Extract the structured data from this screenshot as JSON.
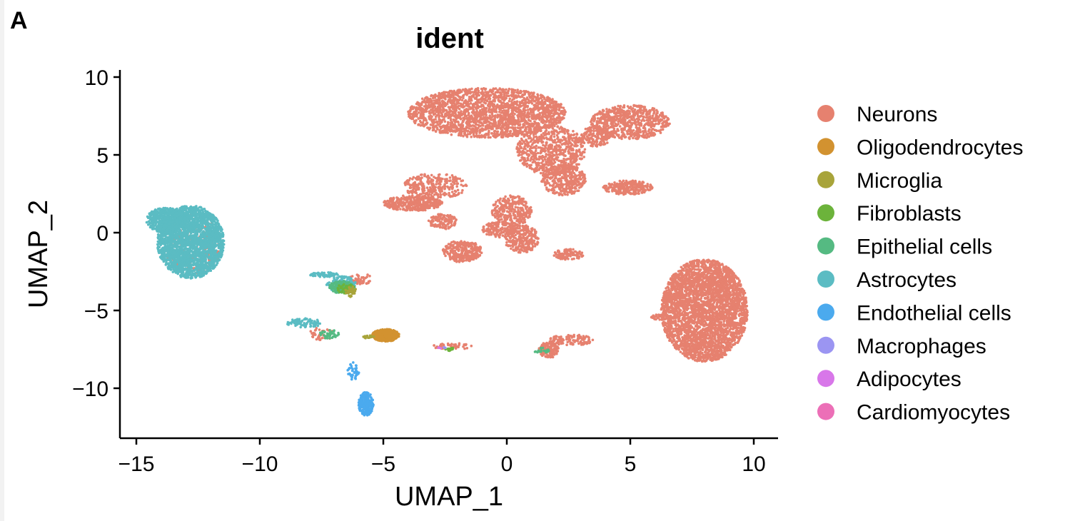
{
  "panel_label": "A",
  "chart_data": {
    "type": "scatter",
    "title": "ident",
    "xlabel": "UMAP_1",
    "ylabel": "UMAP_2",
    "xlim": [
      -15.8,
      10.8
    ],
    "ylim": [
      -13.2,
      10.5
    ],
    "xticks": [
      -15,
      -10,
      -5,
      0,
      5,
      10
    ],
    "yticks": [
      10,
      5,
      0,
      -5,
      -10
    ],
    "xtick_labels": [
      "−15",
      "−10",
      "−5",
      "0",
      "5",
      "10"
    ],
    "ytick_labels": [
      "10",
      "5",
      "0",
      "−5",
      "−10"
    ],
    "grid": false,
    "legend_position": "right",
    "series": [
      {
        "name": "Neurons",
        "color": "#E6816F"
      },
      {
        "name": "Oligodendrocytes",
        "color": "#D29230"
      },
      {
        "name": "Microglia",
        "color": "#A8A43A"
      },
      {
        "name": "Fibroblasts",
        "color": "#6CB33B"
      },
      {
        "name": "Epithelial cells",
        "color": "#55BA82"
      },
      {
        "name": "Astrocytes",
        "color": "#5BBCC3"
      },
      {
        "name": "Endothelial cells",
        "color": "#4BAAEE"
      },
      {
        "name": "Macrophages",
        "color": "#9B95F2"
      },
      {
        "name": "Adipocytes",
        "color": "#D877E9"
      },
      {
        "name": "Cardiomyocytes",
        "color": "#EC6FB7"
      }
    ],
    "clusters": [
      {
        "series": 0,
        "cx": -0.8,
        "cy": 7.7,
        "rx": 3.2,
        "ry": 1.6,
        "n": 2200
      },
      {
        "series": 0,
        "cx": 1.8,
        "cy": 5.3,
        "rx": 1.4,
        "ry": 1.6,
        "n": 700
      },
      {
        "series": 0,
        "cx": 2.3,
        "cy": 3.4,
        "rx": 0.9,
        "ry": 1.0,
        "n": 350
      },
      {
        "series": 0,
        "cx": 5.0,
        "cy": 7.1,
        "rx": 1.6,
        "ry": 1.1,
        "n": 700
      },
      {
        "series": 0,
        "cx": 3.6,
        "cy": 6.2,
        "rx": 0.6,
        "ry": 0.7,
        "n": 150
      },
      {
        "series": 0,
        "cx": 4.9,
        "cy": 2.9,
        "rx": 1.0,
        "ry": 0.45,
        "n": 250
      },
      {
        "series": 0,
        "cx": -3.8,
        "cy": 1.9,
        "rx": 1.2,
        "ry": 0.5,
        "n": 350
      },
      {
        "series": 0,
        "cx": -2.9,
        "cy": 3.0,
        "rx": 1.3,
        "ry": 0.8,
        "n": 300
      },
      {
        "series": 0,
        "cx": -2.6,
        "cy": 0.7,
        "rx": 0.6,
        "ry": 0.5,
        "n": 120
      },
      {
        "series": 0,
        "cx": 0.2,
        "cy": 1.4,
        "rx": 0.8,
        "ry": 1.0,
        "n": 300
      },
      {
        "series": 0,
        "cx": 0.6,
        "cy": -0.4,
        "rx": 0.7,
        "ry": 0.9,
        "n": 250
      },
      {
        "series": 0,
        "cx": -1.8,
        "cy": -1.2,
        "rx": 0.8,
        "ry": 0.7,
        "n": 300
      },
      {
        "series": 0,
        "cx": -0.3,
        "cy": 0.2,
        "rx": 0.7,
        "ry": 0.5,
        "n": 150
      },
      {
        "series": 0,
        "cx": 2.5,
        "cy": -1.4,
        "rx": 0.6,
        "ry": 0.35,
        "n": 100
      },
      {
        "series": 0,
        "cx": 8.0,
        "cy": -5.0,
        "rx": 1.75,
        "ry": 3.3,
        "n": 3500
      },
      {
        "series": 0,
        "cx": 6.3,
        "cy": -5.4,
        "rx": 0.5,
        "ry": 0.2,
        "n": 40
      },
      {
        "series": 0,
        "cx": 1.7,
        "cy": -7.5,
        "rx": 0.4,
        "ry": 0.55,
        "n": 130
      },
      {
        "series": 0,
        "cx": 2.6,
        "cy": -6.9,
        "rx": 0.9,
        "ry": 0.35,
        "n": 110
      },
      {
        "series": 0,
        "cx": -2.2,
        "cy": -7.3,
        "rx": 0.8,
        "ry": 0.2,
        "n": 50
      },
      {
        "series": 0,
        "cx": -5.9,
        "cy": -3.0,
        "rx": 0.5,
        "ry": 0.35,
        "n": 50
      },
      {
        "series": 0,
        "cx": -7.5,
        "cy": -6.5,
        "rx": 0.5,
        "ry": 0.4,
        "n": 40
      },
      {
        "series": 0,
        "cx": -12.7,
        "cy": -0.8,
        "rx": 1.2,
        "ry": 2.0,
        "n": 260
      },
      {
        "series": 5,
        "cx": -12.8,
        "cy": -0.6,
        "rx": 1.35,
        "ry": 2.35,
        "n": 2400
      },
      {
        "series": 5,
        "cx": -13.8,
        "cy": 0.8,
        "rx": 0.8,
        "ry": 0.8,
        "n": 500
      },
      {
        "series": 5,
        "cx": -7.4,
        "cy": -2.7,
        "rx": 0.6,
        "ry": 0.15,
        "n": 60
      },
      {
        "series": 5,
        "cx": -6.7,
        "cy": -3.3,
        "rx": 0.6,
        "ry": 0.5,
        "n": 140
      },
      {
        "series": 4,
        "cx": -6.7,
        "cy": -3.5,
        "rx": 0.5,
        "ry": 0.4,
        "n": 170
      },
      {
        "series": 3,
        "cx": -6.5,
        "cy": -3.6,
        "rx": 0.4,
        "ry": 0.3,
        "n": 40
      },
      {
        "series": 2,
        "cx": -6.3,
        "cy": -3.8,
        "rx": 0.25,
        "ry": 0.35,
        "n": 30
      },
      {
        "series": 1,
        "cx": -4.9,
        "cy": -6.6,
        "rx": 0.55,
        "ry": 0.4,
        "n": 420
      },
      {
        "series": 2,
        "cx": -5.6,
        "cy": -6.7,
        "rx": 0.25,
        "ry": 0.1,
        "n": 15
      },
      {
        "series": 6,
        "cx": -5.7,
        "cy": -11.0,
        "rx": 0.3,
        "ry": 0.75,
        "n": 260
      },
      {
        "series": 6,
        "cx": -6.2,
        "cy": -8.9,
        "rx": 0.25,
        "ry": 0.6,
        "n": 40
      },
      {
        "series": 5,
        "cx": -8.2,
        "cy": -5.8,
        "rx": 0.7,
        "ry": 0.3,
        "n": 80
      },
      {
        "series": 4,
        "cx": -7.2,
        "cy": -6.5,
        "rx": 0.4,
        "ry": 0.3,
        "n": 40
      },
      {
        "series": 4,
        "cx": 1.4,
        "cy": -7.6,
        "rx": 0.3,
        "ry": 0.2,
        "n": 20
      },
      {
        "series": 3,
        "cx": -2.3,
        "cy": -7.5,
        "rx": 0.2,
        "ry": 0.1,
        "n": 15
      },
      {
        "series": 7,
        "cx": -2.5,
        "cy": -7.4,
        "rx": 0.1,
        "ry": 0.05,
        "n": 4
      },
      {
        "series": 8,
        "cx": -2.7,
        "cy": -7.4,
        "rx": 0.1,
        "ry": 0.05,
        "n": 3
      }
    ]
  }
}
